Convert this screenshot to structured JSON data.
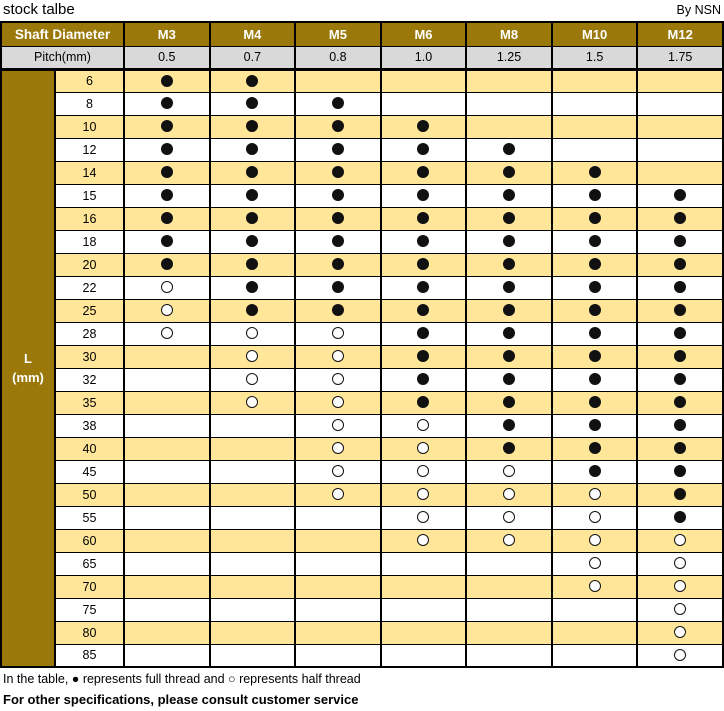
{
  "title": "stock talbe",
  "byline": "By NSN",
  "colors": {
    "header_gold": "#9A790A",
    "row_yellow": "#FFE699",
    "pitch_gray": "#D9D9D9",
    "marker_black": "#111111"
  },
  "table": {
    "corner_header": "Shaft Diameter",
    "pitch_header": "Pitch(mm)",
    "l_header_line1": "L",
    "l_header_line2": "(mm)",
    "columns": [
      "M3",
      "M4",
      "M5",
      "M6",
      "M8",
      "M10",
      "M12"
    ],
    "pitches": [
      "0.5",
      "0.7",
      "0.8",
      "1.0",
      "1.25",
      "1.5",
      "1.75"
    ],
    "rows": [
      {
        "l": "6",
        "cells": [
          "F",
          "F",
          "",
          "",
          "",
          "",
          ""
        ]
      },
      {
        "l": "8",
        "cells": [
          "F",
          "F",
          "F",
          "",
          "",
          "",
          ""
        ]
      },
      {
        "l": "10",
        "cells": [
          "F",
          "F",
          "F",
          "F",
          "",
          "",
          ""
        ]
      },
      {
        "l": "12",
        "cells": [
          "F",
          "F",
          "F",
          "F",
          "F",
          "",
          ""
        ]
      },
      {
        "l": "14",
        "cells": [
          "F",
          "F",
          "F",
          "F",
          "F",
          "F",
          ""
        ]
      },
      {
        "l": "15",
        "cells": [
          "F",
          "F",
          "F",
          "F",
          "F",
          "F",
          "F"
        ]
      },
      {
        "l": "16",
        "cells": [
          "F",
          "F",
          "F",
          "F",
          "F",
          "F",
          "F"
        ]
      },
      {
        "l": "18",
        "cells": [
          "F",
          "F",
          "F",
          "F",
          "F",
          "F",
          "F"
        ]
      },
      {
        "l": "20",
        "cells": [
          "F",
          "F",
          "F",
          "F",
          "F",
          "F",
          "F"
        ]
      },
      {
        "l": "22",
        "cells": [
          "H",
          "F",
          "F",
          "F",
          "F",
          "F",
          "F"
        ]
      },
      {
        "l": "25",
        "cells": [
          "H",
          "F",
          "F",
          "F",
          "F",
          "F",
          "F"
        ]
      },
      {
        "l": "28",
        "cells": [
          "H",
          "H",
          "H",
          "F",
          "F",
          "F",
          "F"
        ]
      },
      {
        "l": "30",
        "cells": [
          "",
          "H",
          "H",
          "F",
          "F",
          "F",
          "F"
        ]
      },
      {
        "l": "32",
        "cells": [
          "",
          "H",
          "H",
          "F",
          "F",
          "F",
          "F"
        ]
      },
      {
        "l": "35",
        "cells": [
          "",
          "H",
          "H",
          "F",
          "F",
          "F",
          "F"
        ]
      },
      {
        "l": "38",
        "cells": [
          "",
          "",
          "H",
          "H",
          "F",
          "F",
          "F"
        ]
      },
      {
        "l": "40",
        "cells": [
          "",
          "",
          "H",
          "H",
          "F",
          "F",
          "F"
        ]
      },
      {
        "l": "45",
        "cells": [
          "",
          "",
          "H",
          "H",
          "H",
          "F",
          "F"
        ]
      },
      {
        "l": "50",
        "cells": [
          "",
          "",
          "H",
          "H",
          "H",
          "H",
          "F"
        ]
      },
      {
        "l": "55",
        "cells": [
          "",
          "",
          "",
          "H",
          "H",
          "H",
          "F"
        ]
      },
      {
        "l": "60",
        "cells": [
          "",
          "",
          "",
          "H",
          "H",
          "H",
          "H"
        ]
      },
      {
        "l": "65",
        "cells": [
          "",
          "",
          "",
          "",
          "",
          "H",
          "H"
        ]
      },
      {
        "l": "70",
        "cells": [
          "",
          "",
          "",
          "",
          "",
          "H",
          "H"
        ]
      },
      {
        "l": "75",
        "cells": [
          "",
          "",
          "",
          "",
          "",
          "",
          "H"
        ]
      },
      {
        "l": "80",
        "cells": [
          "",
          "",
          "",
          "",
          "",
          "",
          "H"
        ]
      },
      {
        "l": "85",
        "cells": [
          "",
          "",
          "",
          "",
          "",
          "",
          "H"
        ]
      }
    ]
  },
  "legend": {
    "full_symbol": "●",
    "half_symbol": "○",
    "note": "In the table, ● represents full thread and ○ represents half thread",
    "footer": "For other specifications, please consult customer service"
  }
}
